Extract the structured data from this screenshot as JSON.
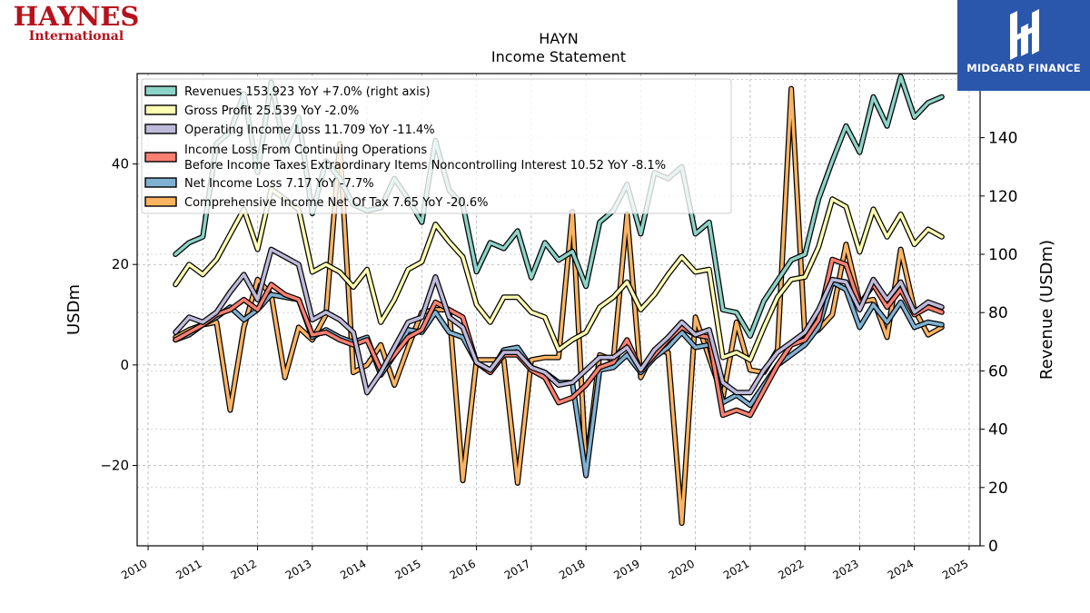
{
  "logos": {
    "left_line1": "HAYNES",
    "left_line2": "International",
    "right_text": "MIDGARD FINANCE",
    "right_bg": "#2a57ac",
    "left_color": "#b5121b"
  },
  "chart_data": {
    "type": "line",
    "title": "HAYN",
    "subtitle": "Income Statement",
    "ylabel": "USDm",
    "y2label": "Revenue (USDm)",
    "ylim": [
      -36,
      58
    ],
    "y2lim": [
      0,
      162
    ],
    "yticks": [
      -20,
      0,
      20,
      40
    ],
    "y2ticks": [
      0,
      20,
      40,
      60,
      80,
      100,
      120,
      140,
      160
    ],
    "xlim": [
      2009.8,
      2025.2
    ],
    "xticks": [
      "2010",
      "2011",
      "2012",
      "2013",
      "2014",
      "2015",
      "2016",
      "2017",
      "2018",
      "2019",
      "2020",
      "2021",
      "2022",
      "2023",
      "2024",
      "2025"
    ],
    "grid": true,
    "legend_position": "top-left",
    "x": [
      2010.5,
      2010.75,
      2011.0,
      2011.25,
      2011.5,
      2011.75,
      2012.0,
      2012.25,
      2012.5,
      2012.75,
      2013.0,
      2013.25,
      2013.5,
      2013.75,
      2014.0,
      2014.25,
      2014.5,
      2014.75,
      2015.0,
      2015.25,
      2015.5,
      2015.75,
      2016.0,
      2016.25,
      2016.5,
      2016.75,
      2017.0,
      2017.25,
      2017.5,
      2017.75,
      2018.0,
      2018.25,
      2018.5,
      2018.75,
      2019.0,
      2019.25,
      2019.5,
      2019.75,
      2020.0,
      2020.25,
      2020.5,
      2020.75,
      2021.0,
      2021.25,
      2021.5,
      2021.75,
      2022.0,
      2022.25,
      2022.5,
      2022.75,
      2023.0,
      2023.25,
      2023.5,
      2023.75,
      2024.0,
      2024.25,
      2024.5
    ],
    "series": [
      {
        "name": "Revenues  153.923 YoY +7.0% (right axis)",
        "color": "#8dd3c7",
        "axis": "right",
        "values": [
          100,
          104,
          106,
          138,
          142,
          155,
          128,
          159,
          136,
          147,
          114,
          132,
          126,
          117,
          115,
          116,
          126,
          119,
          111,
          139,
          122,
          117,
          94,
          104,
          102,
          108,
          92,
          104,
          98,
          101,
          89,
          111,
          115,
          124,
          107,
          128,
          126,
          130,
          107,
          111,
          81,
          80,
          72,
          84,
          91,
          98,
          100,
          119,
          132,
          144,
          135,
          154,
          144,
          161,
          147,
          152,
          154
        ]
      },
      {
        "name": "Gross Profit  25.539 YoY -2.0%",
        "color": "#ffffb3",
        "axis": "left",
        "values": [
          16,
          20,
          18,
          21,
          26,
          31,
          23,
          35,
          33,
          31,
          18.5,
          20,
          18.5,
          15.5,
          19,
          8.5,
          13,
          19,
          20.5,
          28,
          24.5,
          21.5,
          12,
          8.5,
          13.5,
          13.5,
          10.5,
          9.5,
          3,
          5,
          6.5,
          11.5,
          13.5,
          16.5,
          11,
          14,
          18,
          21.5,
          18.5,
          19,
          1.5,
          2.5,
          1,
          7.5,
          13.5,
          17,
          17.5,
          23.5,
          33,
          31.5,
          22.5,
          31,
          25.5,
          30,
          24,
          27,
          25.5
        ]
      },
      {
        "name": "Operating Income Loss  11.709 YoY -11.4%",
        "color": "#bebada",
        "axis": "left",
        "values": [
          6.5,
          9.5,
          8.5,
          10.5,
          14.5,
          18,
          13,
          23,
          21.5,
          20,
          9,
          10.5,
          9,
          6.5,
          -5.5,
          -1.5,
          3.5,
          8.5,
          9.5,
          17.5,
          9.5,
          7.5,
          0.5,
          -1,
          2.5,
          2.5,
          -0.5,
          -1.5,
          -4,
          -3.5,
          -1,
          1.5,
          1.5,
          3.5,
          -1,
          3,
          5.5,
          8.5,
          6,
          7,
          -3.5,
          -5.5,
          -5.5,
          -1,
          2.5,
          4.5,
          6.5,
          11,
          17,
          16.5,
          11,
          17,
          13,
          16.5,
          10.5,
          12.5,
          11.5
        ]
      },
      {
        "name": "Income Loss From Continuing Operations\nBefore Income Taxes Extraordinary Items Noncontrolling Interest  10.52 YoY -8.1%",
        "color": "#fb8072",
        "axis": "left",
        "values": [
          5,
          6.5,
          8,
          10,
          11,
          13,
          11,
          16,
          14,
          13,
          6,
          6.5,
          5,
          4,
          5,
          -1,
          2,
          5.5,
          7,
          12.5,
          11,
          9.5,
          0.5,
          -1.5,
          2,
          2,
          -1,
          -2.5,
          -7.5,
          -6.5,
          -4,
          -0.5,
          0.5,
          5,
          -1,
          2,
          5,
          7.5,
          6,
          5.5,
          -10,
          -9,
          -10,
          -5,
          0,
          4,
          5,
          9,
          21,
          20,
          12,
          16,
          11.5,
          15,
          10,
          11.5,
          10.5
        ]
      },
      {
        "name": "Net Income Loss  7.17 YoY -7.7%",
        "color": "#80b1d3",
        "axis": "left",
        "values": [
          5,
          6,
          8,
          9.5,
          11.5,
          9,
          11,
          14,
          13.5,
          13,
          5.5,
          7,
          5.5,
          4.5,
          5.5,
          -2,
          2,
          7,
          6.5,
          10.5,
          6.5,
          5.5,
          0.5,
          -1.5,
          3,
          3.5,
          -0.5,
          -1.5,
          -3.5,
          -3.5,
          -22,
          -1,
          -0.5,
          2,
          -1.5,
          1.5,
          3.5,
          6.5,
          3.5,
          4,
          -7.5,
          -6,
          -8,
          -4,
          0,
          2,
          4,
          7.5,
          16.5,
          15,
          7.5,
          12,
          8.5,
          12.5,
          7.5,
          8.5,
          8
        ]
      },
      {
        "name": "Comprehensive Income Net Of Tax  7.65 YoY -20.6%",
        "color": "#fdb462",
        "axis": "left",
        "values": [
          5.5,
          7,
          8,
          8.5,
          -9,
          7.5,
          17,
          14,
          -2.5,
          7.5,
          5,
          10,
          44,
          -1.5,
          0,
          4,
          -4,
          3.5,
          10.5,
          11,
          11,
          -23,
          1,
          1,
          1,
          -23.5,
          1,
          1.5,
          1.5,
          30.5,
          -20.5,
          2,
          1,
          30,
          -2.5,
          3,
          2.5,
          -31.5,
          9.5,
          1.5,
          -6.5,
          8.5,
          -1,
          -1.5,
          3,
          55,
          5.5,
          7,
          10,
          24,
          12.5,
          13,
          5.5,
          23,
          11,
          6,
          7.5
        ]
      }
    ]
  }
}
